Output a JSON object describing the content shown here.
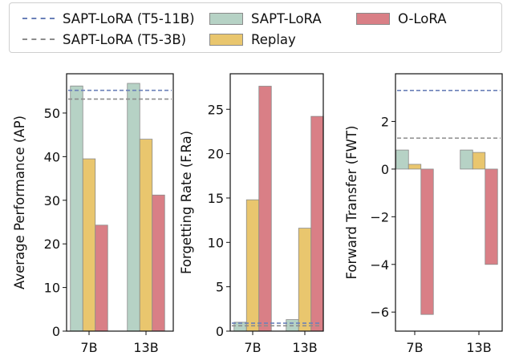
{
  "colors": {
    "sapt": "#b6d2c5",
    "replay": "#e9c66e",
    "olora": "#d97f86",
    "t5_11b_line": "#6a80b8",
    "t5_3b_line": "#8c8c8c"
  },
  "legend": {
    "items": [
      {
        "label": "SAPT-LoRA (T5-11B)",
        "kind": "line",
        "color_key": "t5_11b_line"
      },
      {
        "label": "SAPT-LoRA (T5-3B)",
        "kind": "line",
        "color_key": "t5_3b_line"
      },
      {
        "label": "SAPT-LoRA",
        "kind": "box",
        "color_key": "sapt"
      },
      {
        "label": "Replay",
        "kind": "box",
        "color_key": "replay"
      },
      {
        "label": "O-LoRA",
        "kind": "box",
        "color_key": "olora"
      }
    ]
  },
  "chart_data": [
    {
      "type": "bar",
      "ylabel": "Average Performance (AP)",
      "categories": [
        "7B",
        "13B"
      ],
      "ylim": [
        0,
        59
      ],
      "yticks": [
        0,
        10,
        20,
        30,
        40,
        50
      ],
      "series": [
        {
          "name": "SAPT-LoRA",
          "color_key": "sapt",
          "values": [
            56.2,
            56.8
          ]
        },
        {
          "name": "Replay",
          "color_key": "replay",
          "values": [
            39.5,
            44.0
          ]
        },
        {
          "name": "O-LoRA",
          "color_key": "olora",
          "values": [
            24.3,
            31.2
          ]
        }
      ],
      "reference_lines": [
        {
          "name": "SAPT-LoRA (T5-11B)",
          "color_key": "t5_11b_line",
          "value": 55.2
        },
        {
          "name": "SAPT-LoRA (T5-3B)",
          "color_key": "t5_3b_line",
          "value": 53.2
        }
      ]
    },
    {
      "type": "bar",
      "ylabel": "Forgetting Rate (F.Ra)",
      "categories": [
        "7B",
        "13B"
      ],
      "ylim": [
        0,
        29
      ],
      "yticks": [
        0,
        5,
        10,
        15,
        20,
        25
      ],
      "series": [
        {
          "name": "SAPT-LoRA",
          "color_key": "sapt",
          "values": [
            1.0,
            1.3
          ]
        },
        {
          "name": "Replay",
          "color_key": "replay",
          "values": [
            14.8,
            11.6
          ]
        },
        {
          "name": "O-LoRA",
          "color_key": "olora",
          "values": [
            27.6,
            24.2
          ]
        }
      ],
      "reference_lines": [
        {
          "name": "SAPT-LoRA (T5-11B)",
          "color_key": "t5_11b_line",
          "value": 0.9
        },
        {
          "name": "SAPT-LoRA (T5-3B)",
          "color_key": "t5_3b_line",
          "value": 0.6
        }
      ]
    },
    {
      "type": "bar",
      "ylabel": "Forward Transfer (FWT)",
      "categories": [
        "7B",
        "13B"
      ],
      "ylim": [
        -6.8,
        4.0
      ],
      "yticks": [
        -6,
        -4,
        -2,
        0,
        2
      ],
      "series": [
        {
          "name": "SAPT-LoRA",
          "color_key": "sapt",
          "values": [
            0.8,
            0.8
          ]
        },
        {
          "name": "Replay",
          "color_key": "replay",
          "values": [
            0.2,
            0.7
          ]
        },
        {
          "name": "O-LoRA",
          "color_key": "olora",
          "values": [
            -6.1,
            -4.0
          ]
        }
      ],
      "reference_lines": [
        {
          "name": "SAPT-LoRA (T5-11B)",
          "color_key": "t5_11b_line",
          "value": 3.3
        },
        {
          "name": "SAPT-LoRA (T5-3B)",
          "color_key": "t5_3b_line",
          "value": 1.3
        }
      ]
    }
  ]
}
